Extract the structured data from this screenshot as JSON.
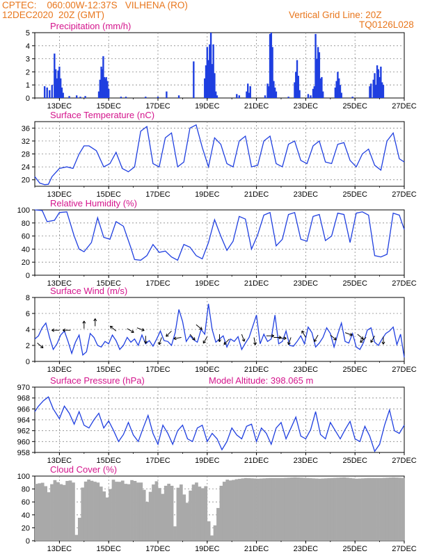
{
  "header": {
    "line1": "CPTEC:    060:00W-12:37S   VILHENA (RO)",
    "line2": "12DEC2020  20Z (GMT)",
    "grid_note": "Vertical Grid Line: 20Z",
    "code": "TQ0126L028",
    "text_color": "#e8761c"
  },
  "title_color": "#d4148c",
  "series_color": "#1f3fe0",
  "x_ticks": [
    "13DEC",
    "15DEC",
    "17DEC",
    "19DEC",
    "21DEC",
    "23DEC",
    "25DEC",
    "27DEC"
  ],
  "chart_data": [
    {
      "id": "precip",
      "type": "bar",
      "title": "Precipitation (mm/h)",
      "x_range_days": [
        0,
        15
      ],
      "ylim": [
        0,
        5
      ],
      "yticks": [
        0,
        1,
        2,
        3,
        4,
        5
      ],
      "bars": [
        [
          0.4,
          0.9
        ],
        [
          0.5,
          0.8
        ],
        [
          0.6,
          0.6
        ],
        [
          0.7,
          1.0
        ],
        [
          0.8,
          3.4
        ],
        [
          0.85,
          2.2
        ],
        [
          0.9,
          1.5
        ],
        [
          0.95,
          2.1
        ],
        [
          1.0,
          2.4
        ],
        [
          1.05,
          1.5
        ],
        [
          1.1,
          0.8
        ],
        [
          1.15,
          0.4
        ],
        [
          1.4,
          0.15
        ],
        [
          1.7,
          0.2
        ],
        [
          1.85,
          0.1
        ],
        [
          2.05,
          0.15
        ],
        [
          2.6,
          0.5
        ],
        [
          2.65,
          1.4
        ],
        [
          2.7,
          2.4
        ],
        [
          2.75,
          2.2
        ],
        [
          2.78,
          3.2
        ],
        [
          2.82,
          1.6
        ],
        [
          2.86,
          1.5
        ],
        [
          2.9,
          1.6
        ],
        [
          2.95,
          1.3
        ],
        [
          3.0,
          0.7
        ],
        [
          3.5,
          0.1
        ],
        [
          3.7,
          0.1
        ],
        [
          4.5,
          0.1
        ],
        [
          5.0,
          0.1
        ],
        [
          5.35,
          0.5
        ],
        [
          5.85,
          0.2
        ],
        [
          6.45,
          2.8
        ],
        [
          6.9,
          1.5
        ],
        [
          6.95,
          2.5
        ],
        [
          7.0,
          3.9
        ],
        [
          7.05,
          2.9
        ],
        [
          7.1,
          4.1
        ],
        [
          7.15,
          5.0
        ],
        [
          7.2,
          2.6
        ],
        [
          7.25,
          4.1
        ],
        [
          7.3,
          1.9
        ],
        [
          7.35,
          0.5
        ],
        [
          7.4,
          0.2
        ],
        [
          8.2,
          0.3
        ],
        [
          8.3,
          0.2
        ],
        [
          8.6,
          0.5
        ],
        [
          8.65,
          1.1
        ],
        [
          8.7,
          0.4
        ],
        [
          8.75,
          0.9
        ],
        [
          9.35,
          0.2
        ],
        [
          9.45,
          1.1
        ],
        [
          9.5,
          0.9
        ],
        [
          9.55,
          4.9
        ],
        [
          9.6,
          5.0
        ],
        [
          9.65,
          3.9
        ],
        [
          9.7,
          1.3
        ],
        [
          9.75,
          0.8
        ],
        [
          9.8,
          0.5
        ],
        [
          10.3,
          0.1
        ],
        [
          10.55,
          1.2
        ],
        [
          10.6,
          2.0
        ],
        [
          10.65,
          2.9
        ],
        [
          10.7,
          1.7
        ],
        [
          10.75,
          0.6
        ],
        [
          11.1,
          0.3
        ],
        [
          11.2,
          0.2
        ],
        [
          11.3,
          0.7
        ],
        [
          11.35,
          0.9
        ],
        [
          11.4,
          4.9
        ],
        [
          11.45,
          3.0
        ],
        [
          11.5,
          3.9
        ],
        [
          11.55,
          3.5
        ],
        [
          11.6,
          1.5
        ],
        [
          11.65,
          1.6
        ],
        [
          11.7,
          0.5
        ],
        [
          12.2,
          0.8
        ],
        [
          12.25,
          1.3
        ],
        [
          12.3,
          2.0
        ],
        [
          12.35,
          1.5
        ],
        [
          12.4,
          1.0
        ],
        [
          12.45,
          0.4
        ],
        [
          12.9,
          0.1
        ],
        [
          13.6,
          0.9
        ],
        [
          13.65,
          1.1
        ],
        [
          13.75,
          1.4
        ],
        [
          13.8,
          1.9
        ],
        [
          13.85,
          1.0
        ],
        [
          13.9,
          2.5
        ],
        [
          13.95,
          2.2
        ],
        [
          14.0,
          1.6
        ],
        [
          14.05,
          2.4
        ],
        [
          14.1,
          1.2
        ],
        [
          14.15,
          1.0
        ]
      ]
    },
    {
      "id": "temp",
      "type": "line",
      "title": "Surface Temperature (nC)",
      "x_range_days": [
        0,
        15
      ],
      "ylim": [
        18,
        38
      ],
      "yticks": [
        20,
        24,
        28,
        32,
        36
      ],
      "x": [
        0,
        0.2,
        0.4,
        0.55,
        0.7,
        1.0,
        1.3,
        1.55,
        1.8,
        2.0,
        2.2,
        2.5,
        2.8,
        3.05,
        3.3,
        3.55,
        3.8,
        4.05,
        4.3,
        4.55,
        4.8,
        5.05,
        5.3,
        5.55,
        5.8,
        6.05,
        6.3,
        6.55,
        6.8,
        7.05,
        7.3,
        7.55,
        7.8,
        8.05,
        8.3,
        8.55,
        8.8,
        9.05,
        9.3,
        9.55,
        9.8,
        10.05,
        10.3,
        10.55,
        10.8,
        11.05,
        11.3,
        11.55,
        11.8,
        12.05,
        12.3,
        12.55,
        12.8,
        13.05,
        13.3,
        13.55,
        13.8,
        14.05,
        14.3,
        14.55,
        14.8,
        15.0
      ],
      "y": [
        21,
        19,
        18.5,
        18.6,
        21,
        23.5,
        24,
        23.5,
        28,
        30.5,
        30.5,
        29,
        24,
        25,
        28.5,
        23.5,
        22.5,
        24,
        35,
        36.5,
        25,
        24,
        33,
        34.5,
        24,
        25.5,
        36,
        37,
        30,
        24,
        33,
        31,
        25,
        24,
        32,
        33.5,
        24,
        24.5,
        32,
        33.5,
        25,
        24,
        31,
        32,
        26,
        25,
        30.5,
        32,
        25.5,
        25,
        31,
        31.5,
        26,
        24,
        28,
        29.5,
        24.5,
        23,
        32,
        34.5,
        26.5,
        25.5
      ]
    },
    {
      "id": "rh",
      "type": "line",
      "title": "Relative Humidity (%)",
      "x_range_days": [
        0,
        15
      ],
      "ylim": [
        0,
        100
      ],
      "yticks": [
        0,
        20,
        40,
        60,
        80,
        100
      ],
      "x": [
        0,
        0.3,
        0.5,
        0.8,
        1.0,
        1.3,
        1.6,
        1.8,
        2.0,
        2.3,
        2.55,
        2.8,
        3.05,
        3.3,
        3.6,
        3.9,
        4.05,
        4.3,
        4.55,
        4.8,
        5.05,
        5.3,
        5.55,
        5.8,
        6.05,
        6.3,
        6.55,
        6.8,
        7.05,
        7.3,
        7.55,
        7.8,
        8.05,
        8.3,
        8.55,
        8.8,
        9.05,
        9.3,
        9.55,
        9.8,
        10.05,
        10.3,
        10.55,
        10.8,
        11.05,
        11.3,
        11.55,
        11.8,
        12.05,
        12.3,
        12.55,
        12.8,
        13.05,
        13.3,
        13.55,
        13.8,
        14.05,
        14.3,
        14.55,
        14.8,
        15.0
      ],
      "y": [
        100,
        99,
        82,
        84,
        96,
        97,
        60,
        40,
        36,
        50,
        88,
        58,
        55,
        82,
        75,
        42,
        24,
        23,
        30,
        47,
        35,
        37,
        28,
        23,
        47,
        43,
        30,
        25,
        50,
        85,
        60,
        38,
        52,
        90,
        86,
        40,
        62,
        92,
        96,
        45,
        55,
        93,
        96,
        55,
        52,
        90,
        93,
        53,
        60,
        95,
        93,
        50,
        95,
        97,
        92,
        30,
        28,
        32,
        95,
        92,
        70
      ]
    },
    {
      "id": "wind",
      "type": "line",
      "title": "Surface Wind (m/s)",
      "x_range_days": [
        0,
        15
      ],
      "ylim": [
        0,
        8
      ],
      "yticks": [
        0,
        2,
        4,
        6,
        8
      ],
      "x": [
        0,
        0.15,
        0.3,
        0.45,
        0.6,
        0.75,
        0.9,
        1.05,
        1.2,
        1.35,
        1.5,
        1.65,
        1.8,
        1.95,
        2.1,
        2.25,
        2.4,
        2.55,
        2.7,
        2.85,
        3.0,
        3.15,
        3.3,
        3.45,
        3.6,
        3.75,
        3.9,
        4.05,
        4.2,
        4.35,
        4.5,
        4.65,
        4.8,
        4.95,
        5.1,
        5.25,
        5.4,
        5.55,
        5.7,
        5.85,
        6.0,
        6.15,
        6.3,
        6.45,
        6.6,
        6.75,
        6.9,
        7.05,
        7.2,
        7.35,
        7.5,
        7.65,
        7.8,
        7.95,
        8.1,
        8.25,
        8.4,
        8.55,
        8.7,
        8.85,
        9.0,
        9.15,
        9.3,
        9.45,
        9.6,
        9.75,
        9.9,
        10.05,
        10.2,
        10.35,
        10.5,
        10.65,
        10.8,
        10.95,
        11.1,
        11.25,
        11.4,
        11.55,
        11.7,
        11.85,
        12.0,
        12.15,
        12.3,
        12.45,
        12.6,
        12.75,
        12.9,
        13.05,
        13.2,
        13.35,
        13.5,
        13.65,
        13.8,
        13.95,
        14.1,
        14.25,
        14.4,
        14.55,
        14.7,
        14.85,
        15.0
      ],
      "y": [
        2.8,
        3.2,
        4.2,
        4.8,
        3.0,
        1.5,
        2.2,
        3.3,
        3.8,
        2.5,
        1.0,
        2.4,
        3.3,
        0.8,
        1.2,
        3.5,
        3.0,
        2.0,
        1.8,
        2.5,
        2.2,
        3.3,
        2.6,
        1.5,
        2.0,
        3.0,
        2.4,
        2.8,
        2.0,
        3.3,
        2.2,
        2.6,
        1.9,
        2.8,
        3.8,
        2.6,
        2.5,
        2.0,
        3.6,
        6.5,
        5.0,
        2.5,
        3.2,
        2.7,
        2.4,
        4.0,
        3.4,
        7.2,
        4.0,
        2.4,
        2.8,
        3.2,
        1.8,
        2.8,
        2.5,
        3.1,
        1.5,
        2.3,
        3.0,
        4.4,
        5.8,
        2.2,
        3.4,
        2.5,
        2.8,
        5.8,
        2.2,
        2.5,
        3.8,
        2.0,
        1.9,
        2.5,
        3.2,
        2.2,
        4.3,
        3.6,
        1.8,
        2.3,
        3.0,
        4.2,
        3.5,
        1.8,
        3.4,
        4.8,
        2.5,
        2.3,
        3.5,
        1.8,
        1.5,
        2.4,
        3.9,
        4.2,
        2.4,
        2.0,
        2.8,
        3.5,
        3.8,
        4.3,
        2.1,
        3.4,
        0.5
      ]
    },
    {
      "id": "pres",
      "type": "line",
      "title": "Surface Pressure (hPa)",
      "annotation": "Model Altitude: 398.065 m",
      "x_range_days": [
        0,
        15
      ],
      "ylim": [
        958,
        970
      ],
      "yticks": [
        958,
        960,
        962,
        964,
        966,
        968,
        970
      ],
      "x": [
        0,
        0.15,
        0.35,
        0.55,
        0.75,
        1.0,
        1.2,
        1.4,
        1.6,
        1.8,
        2.0,
        2.2,
        2.4,
        2.6,
        2.8,
        3.0,
        3.2,
        3.4,
        3.6,
        3.8,
        4.0,
        4.2,
        4.4,
        4.6,
        4.8,
        5.0,
        5.2,
        5.4,
        5.6,
        5.8,
        6.0,
        6.2,
        6.4,
        6.6,
        6.8,
        7.0,
        7.2,
        7.4,
        7.6,
        7.8,
        8.0,
        8.2,
        8.4,
        8.6,
        8.8,
        9.0,
        9.2,
        9.4,
        9.6,
        9.8,
        10.0,
        10.2,
        10.4,
        10.6,
        10.8,
        11.0,
        11.2,
        11.4,
        11.6,
        11.8,
        12.0,
        12.2,
        12.4,
        12.6,
        12.8,
        13.0,
        13.2,
        13.4,
        13.6,
        13.8,
        14.0,
        14.2,
        14.4,
        14.6,
        14.8,
        15.0
      ],
      "y": [
        965.5,
        966.5,
        967.5,
        968.2,
        966,
        964.2,
        966.5,
        965.2,
        963.2,
        965.5,
        963,
        962.5,
        964,
        965.2,
        962.5,
        963.8,
        962,
        960,
        961.3,
        963.5,
        961.2,
        960,
        962.5,
        964.8,
        961.5,
        959.5,
        963,
        961.5,
        959.5,
        962,
        963,
        960.5,
        960,
        962.5,
        963,
        960,
        961.5,
        960.5,
        958.5,
        960,
        962.5,
        961.2,
        960.5,
        962.8,
        963.2,
        960,
        962.5,
        961.5,
        959.5,
        962.5,
        963.5,
        960.5,
        962.5,
        964.5,
        961,
        960.5,
        962.2,
        965.5,
        961.3,
        960.5,
        963.5,
        962,
        960.5,
        962.2,
        963.7,
        960.5,
        960,
        962.8,
        961,
        958.2,
        959.5,
        963,
        965.8,
        962,
        961.5,
        963
      ]
    },
    {
      "id": "cloud",
      "type": "bar",
      "title": "Cloud Cover (%)",
      "x_range_days": [
        0,
        15
      ],
      "ylim": [
        0,
        100
      ],
      "yticks": [
        0,
        20,
        40,
        60,
        80,
        100
      ],
      "x": [
        0,
        0.3,
        0.5,
        0.7,
        0.9,
        1.1,
        1.3,
        1.5,
        1.6,
        1.7,
        1.8,
        1.9,
        2.1,
        2.3,
        2.5,
        2.7,
        2.9,
        3.1,
        3.3,
        3.5,
        3.7,
        3.9,
        4.1,
        4.3,
        4.5,
        4.7,
        4.9,
        5.1,
        5.3,
        5.5,
        5.6,
        5.7,
        5.9,
        6.1,
        6.3,
        6.5,
        6.7,
        6.9,
        7.0,
        7.1,
        7.3,
        7.5,
        7.7,
        7.9,
        8.1,
        8.5,
        9.0,
        9.5,
        10.0,
        10.5,
        11.0,
        11.5,
        12.0,
        12.5,
        13.0,
        13.5,
        14.0,
        14.5,
        15.0
      ],
      "y": [
        88,
        90,
        75,
        95,
        90,
        85,
        95,
        90,
        10,
        6,
        65,
        88,
        95,
        92,
        90,
        80,
        65,
        95,
        90,
        93,
        85,
        95,
        90,
        90,
        60,
        85,
        93,
        70,
        90,
        85,
        3,
        80,
        88,
        55,
        85,
        90,
        80,
        85,
        30,
        5,
        30,
        85,
        95,
        93,
        95,
        97,
        96,
        97,
        97,
        98,
        97,
        96,
        97,
        98,
        96,
        97,
        97,
        98,
        97
      ]
    }
  ]
}
